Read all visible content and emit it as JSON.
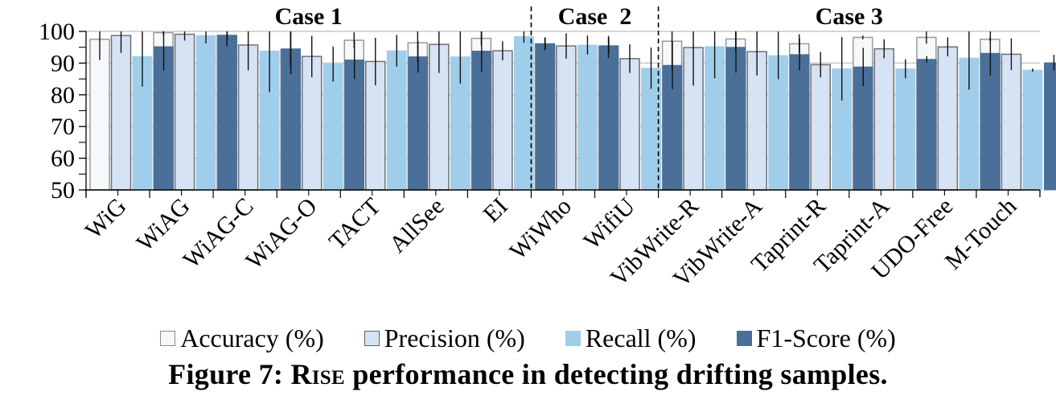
{
  "chart_data": {
    "type": "bar",
    "title": "",
    "xlabel": "",
    "ylabel": "",
    "ylim": [
      50,
      100
    ],
    "yticks": [
      50,
      60,
      70,
      80,
      90,
      100
    ],
    "grid": true,
    "legend_position": "bottom",
    "categories": [
      "WiG",
      "WiAG",
      "WiAG-C",
      "WiAG-O",
      "TACT",
      "AllSee",
      "EI",
      "WiWho",
      "WifiU",
      "VibWrite-R",
      "VibWrite-A",
      "Taprint-R",
      "Taprint-A",
      "UDO-Free",
      "M-Touch"
    ],
    "groups": [
      {
        "label": "Case 1",
        "categories": [
          "WiG",
          "WiAG",
          "WiAG-C",
          "WiAG-O",
          "TACT",
          "AllSee",
          "EI"
        ]
      },
      {
        "label": "Case  2",
        "categories": [
          "WiWho",
          "WifiU"
        ]
      },
      {
        "label": "Case 3",
        "categories": [
          "VibWrite-R",
          "VibWrite-A",
          "Taprint-R",
          "Taprint-A",
          "UDO-Free",
          "M-Touch"
        ]
      }
    ],
    "series": [
      {
        "name": "Accuracy (%)",
        "color": "#f5f9fc",
        "edge": "#9a9a9a",
        "values": [
          97.5,
          99.6,
          98.8,
          94.4,
          97.2,
          96.4,
          97.8,
          96.1,
          95.1,
          96.9,
          97.6,
          96.1,
          98.1,
          98.1,
          97.5
        ],
        "errors": [
          6.5,
          0.8,
          3.5,
          5.5,
          2.5,
          6.0,
          2.2,
          2.0,
          3.5,
          9.0,
          4.0,
          3.0,
          0.6,
          2.0,
          0.5
        ]
      },
      {
        "name": "Precision (%)",
        "color": "#d6e3f4",
        "edge": "#707070",
        "values": [
          98.7,
          99.1,
          95.7,
          92.1,
          90.5,
          95.9,
          93.9,
          95.4,
          91.4,
          94.9,
          93.6,
          89.5,
          94.5,
          95.1,
          92.8
        ],
        "errors": [
          5.5,
          2.0,
          8.0,
          6.5,
          7.5,
          9.0,
          3.0,
          4.0,
          4.5,
          12.0,
          7.5,
          4.0,
          3.0,
          3.0,
          5.0
        ]
      },
      {
        "name": "Recall (%)",
        "color": "#a0cdea",
        "edge": "#a0cdea",
        "values": [
          92.1,
          98.7,
          93.8,
          89.7,
          93.9,
          92.0,
          98.4,
          95.7,
          88.4,
          95.2,
          92.4,
          88.2,
          88.2,
          91.6,
          87.8
        ],
        "errors": [
          9.5,
          2.5,
          13.0,
          5.5,
          5.0,
          8.5,
          2.0,
          3.0,
          6.5,
          10.0,
          7.5,
          10.0,
          3.0,
          10.0,
          0.5
        ]
      },
      {
        "name": "F1-Score (%)",
        "color": "#4a6f98",
        "edge": "#4a6f98",
        "values": [
          95.2,
          98.7,
          94.5,
          91.0,
          92.0,
          93.8,
          96.1,
          95.5,
          89.3,
          95.0,
          92.7,
          88.8,
          91.2,
          93.1,
          90.1
        ],
        "errors": [
          7.5,
          1.5,
          8.0,
          6.0,
          5.0,
          6.5,
          2.0,
          2.5,
          7.5,
          8.0,
          5.0,
          6.0,
          1.0,
          7.0,
          2.5
        ]
      }
    ]
  },
  "legend": {
    "items": [
      {
        "label": "Accuracy (%)"
      },
      {
        "label": "Precision (%)"
      },
      {
        "label": "Recall (%)"
      },
      {
        "label": "F1-Score (%)"
      }
    ]
  },
  "caption": {
    "prefix": "Figure 7: ",
    "name": "Rise",
    "suffix": " performance in detecting drifting samples."
  }
}
